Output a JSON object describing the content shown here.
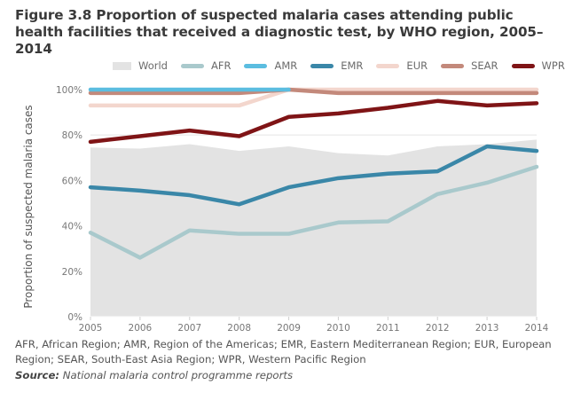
{
  "figure": {
    "title": "Figure 3.8 Proportion of suspected malaria cases attending public health facilities that received a diagnostic test, by WHO region, 2005–2014",
    "footnote": "AFR, African Region; AMR, Region of the Americas; EMR, Eastern Mediterranean Region; EUR, European Region; SEAR, South-East Asia Region; WPR, Western Pacific Region",
    "source_label": "Source:",
    "source_text": "National malaria control programme reports"
  },
  "chart_data": {
    "type": "line",
    "title": "Proportion of suspected malaria cases attending public health facilities that received a diagnostic test, by WHO region, 2005–2014",
    "xlabel": "",
    "ylabel": "Proportion of suspected malaria cases",
    "x": [
      2005,
      2006,
      2007,
      2008,
      2009,
      2010,
      2011,
      2012,
      2013,
      2014
    ],
    "x_tick_labels": [
      "2005",
      "2006",
      "2007",
      "2008",
      "2009",
      "2010",
      "2011",
      "2012",
      "2013",
      "2014"
    ],
    "ylim": [
      0,
      100
    ],
    "y_ticks": [
      0,
      20,
      40,
      60,
      80,
      100
    ],
    "y_tick_labels": [
      "0%",
      "20%",
      "40%",
      "60%",
      "80%",
      "100%"
    ],
    "grid": "horizontal",
    "legend_position": "top",
    "series": [
      {
        "name": "World",
        "kind": "area",
        "color": "#e3e3e3",
        "values": [
          74.5,
          74,
          76,
          73,
          75,
          72,
          71,
          75,
          76,
          78
        ]
      },
      {
        "name": "AFR",
        "kind": "line",
        "color": "#a9c9cc",
        "values": [
          37,
          26,
          38,
          36.5,
          36.5,
          41.5,
          42,
          54,
          59,
          66
        ]
      },
      {
        "name": "AMR",
        "kind": "line",
        "color": "#5bbde0",
        "values": [
          100,
          100,
          100,
          100,
          100,
          null,
          null,
          null,
          null,
          null
        ]
      },
      {
        "name": "EMR",
        "kind": "line",
        "color": "#3a87a8",
        "values": [
          57,
          55.5,
          53.5,
          49.5,
          57,
          61,
          63,
          64,
          75,
          73
        ]
      },
      {
        "name": "EUR",
        "kind": "line",
        "color": "#f3d6cd",
        "values": [
          93,
          93,
          93,
          93,
          100,
          100,
          100,
          100,
          100,
          100
        ]
      },
      {
        "name": "SEAR",
        "kind": "line",
        "color": "#c3897b",
        "values": [
          98.5,
          98.5,
          98.5,
          98.5,
          100,
          98.5,
          98.5,
          98.5,
          98.5,
          98.5
        ]
      },
      {
        "name": "WPR",
        "kind": "line",
        "color": "#7f1416",
        "values": [
          77,
          79.5,
          82,
          79.5,
          88,
          89.5,
          92,
          95,
          93,
          94
        ]
      }
    ]
  }
}
